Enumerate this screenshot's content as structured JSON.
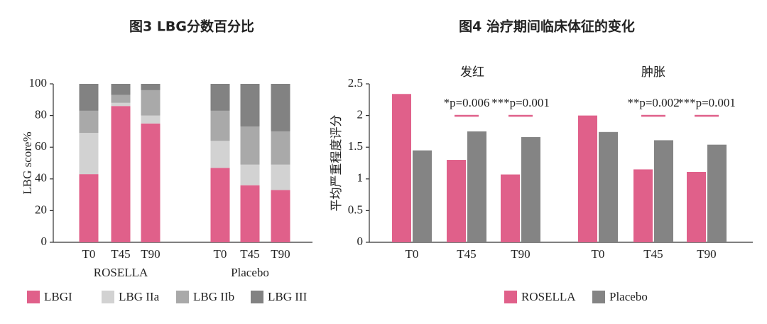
{
  "chart_data": [
    {
      "type": "bar",
      "stacked": true,
      "title": "图3 LBG分数百分比",
      "y_label": "LBG score%",
      "categories": [
        "T0",
        "T45",
        "T90",
        "T0",
        "T45",
        "T90"
      ],
      "group_labels": [
        "ROSELLA",
        "Placebo"
      ],
      "ylim": [
        0,
        100
      ],
      "yticks": [
        0,
        20,
        40,
        60,
        80,
        100
      ],
      "series": [
        {
          "name": "LBGI",
          "color": "#e0608a",
          "values": [
            43,
            86,
            75,
            47,
            36,
            33
          ]
        },
        {
          "name": "LBG IIa",
          "color": "#d2d2d2",
          "values": [
            26,
            2,
            5,
            17,
            13,
            16
          ]
        },
        {
          "name": "LBG IIb",
          "color": "#a9a9a9",
          "values": [
            14,
            5,
            16,
            19,
            24,
            21
          ]
        },
        {
          "name": "LBG III",
          "color": "#828282",
          "values": [
            17,
            7,
            4,
            17,
            27,
            30
          ]
        }
      ]
    },
    {
      "type": "bar",
      "stacked": false,
      "title": "图4 治疗期间临床体征的变化",
      "y_label": "平均严重程度评分",
      "categories": [
        "T0",
        "T45",
        "T90",
        "T0",
        "T45",
        "T90"
      ],
      "group_labels": [
        "发红",
        "肿胀"
      ],
      "ylim": [
        0,
        2.5
      ],
      "yticks": [
        0,
        0.5,
        1,
        1.5,
        2,
        2.5
      ],
      "annotations": [
        "*p=0.006",
        "***p=0.001",
        "**p=0.002",
        "***p=0.001"
      ],
      "series": [
        {
          "name": "ROSELLA",
          "color": "#e0608a",
          "values": [
            2.34,
            1.3,
            1.07,
            2.0,
            1.15,
            1.11
          ]
        },
        {
          "name": "Placebo",
          "color": "#848484",
          "values": [
            1.45,
            1.75,
            1.66,
            1.74,
            1.61,
            1.54
          ]
        }
      ]
    }
  ]
}
